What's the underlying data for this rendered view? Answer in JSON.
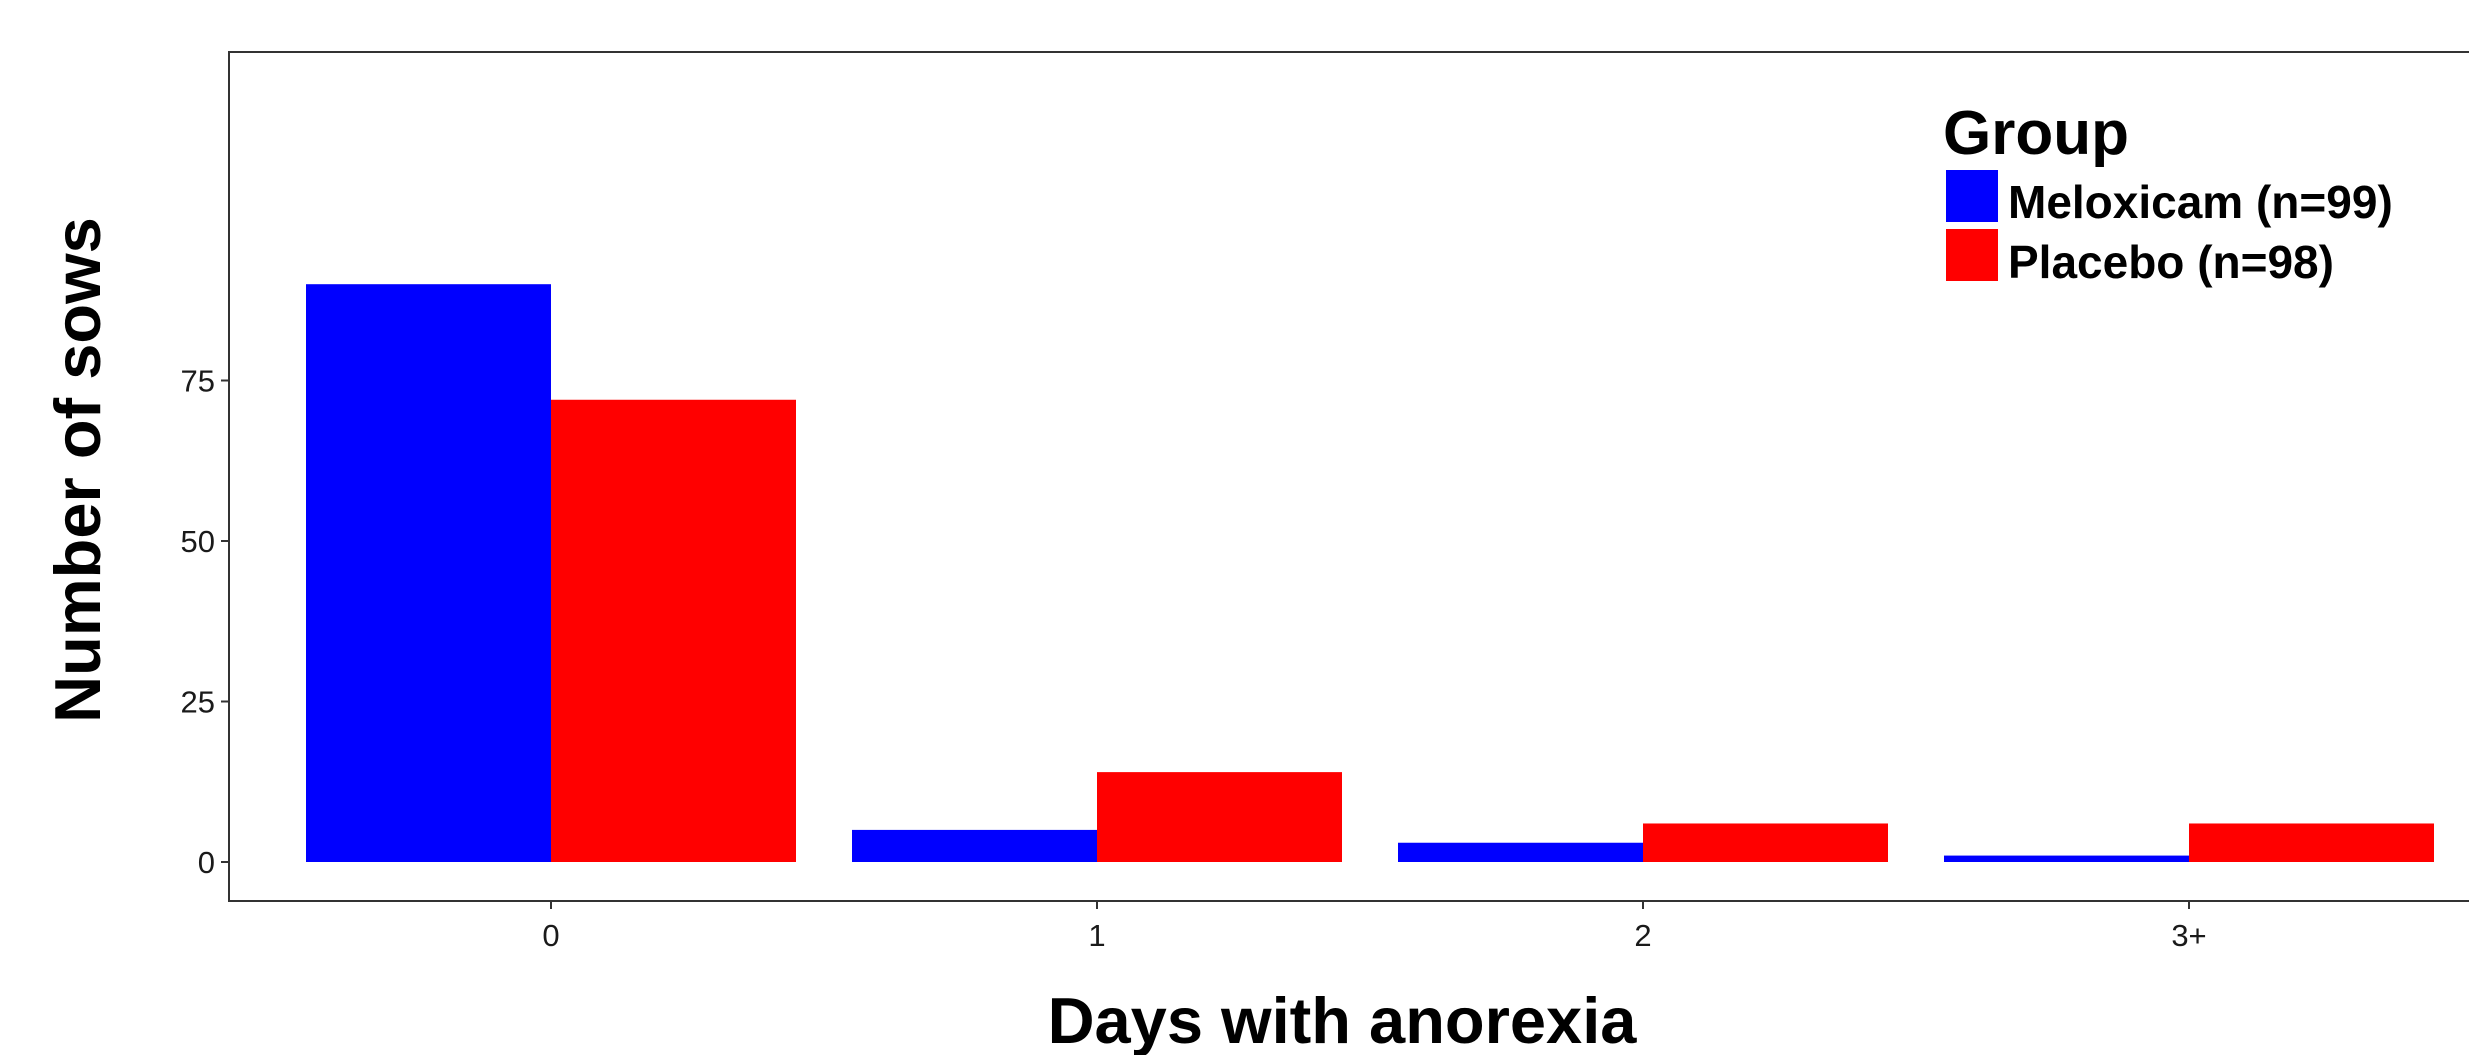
{
  "chart_data": {
    "type": "bar",
    "xlabel": "Days with anorexia",
    "ylabel": "Number of sows",
    "categories": [
      "0",
      "1",
      "2",
      "3+"
    ],
    "series": [
      {
        "name": "Meloxicam (n=99)",
        "color": "#0000ff",
        "values": [
          90,
          5,
          3,
          1
        ]
      },
      {
        "name": "Placebo (n=98)",
        "color": "#ff0000",
        "values": [
          72,
          14,
          6,
          6
        ]
      }
    ],
    "y_ticks": [
      0,
      25,
      50,
      75
    ],
    "ylim": [
      -4.5,
      94.5
    ],
    "grid": false,
    "legend": {
      "title": "Group",
      "position": "top-right"
    }
  }
}
